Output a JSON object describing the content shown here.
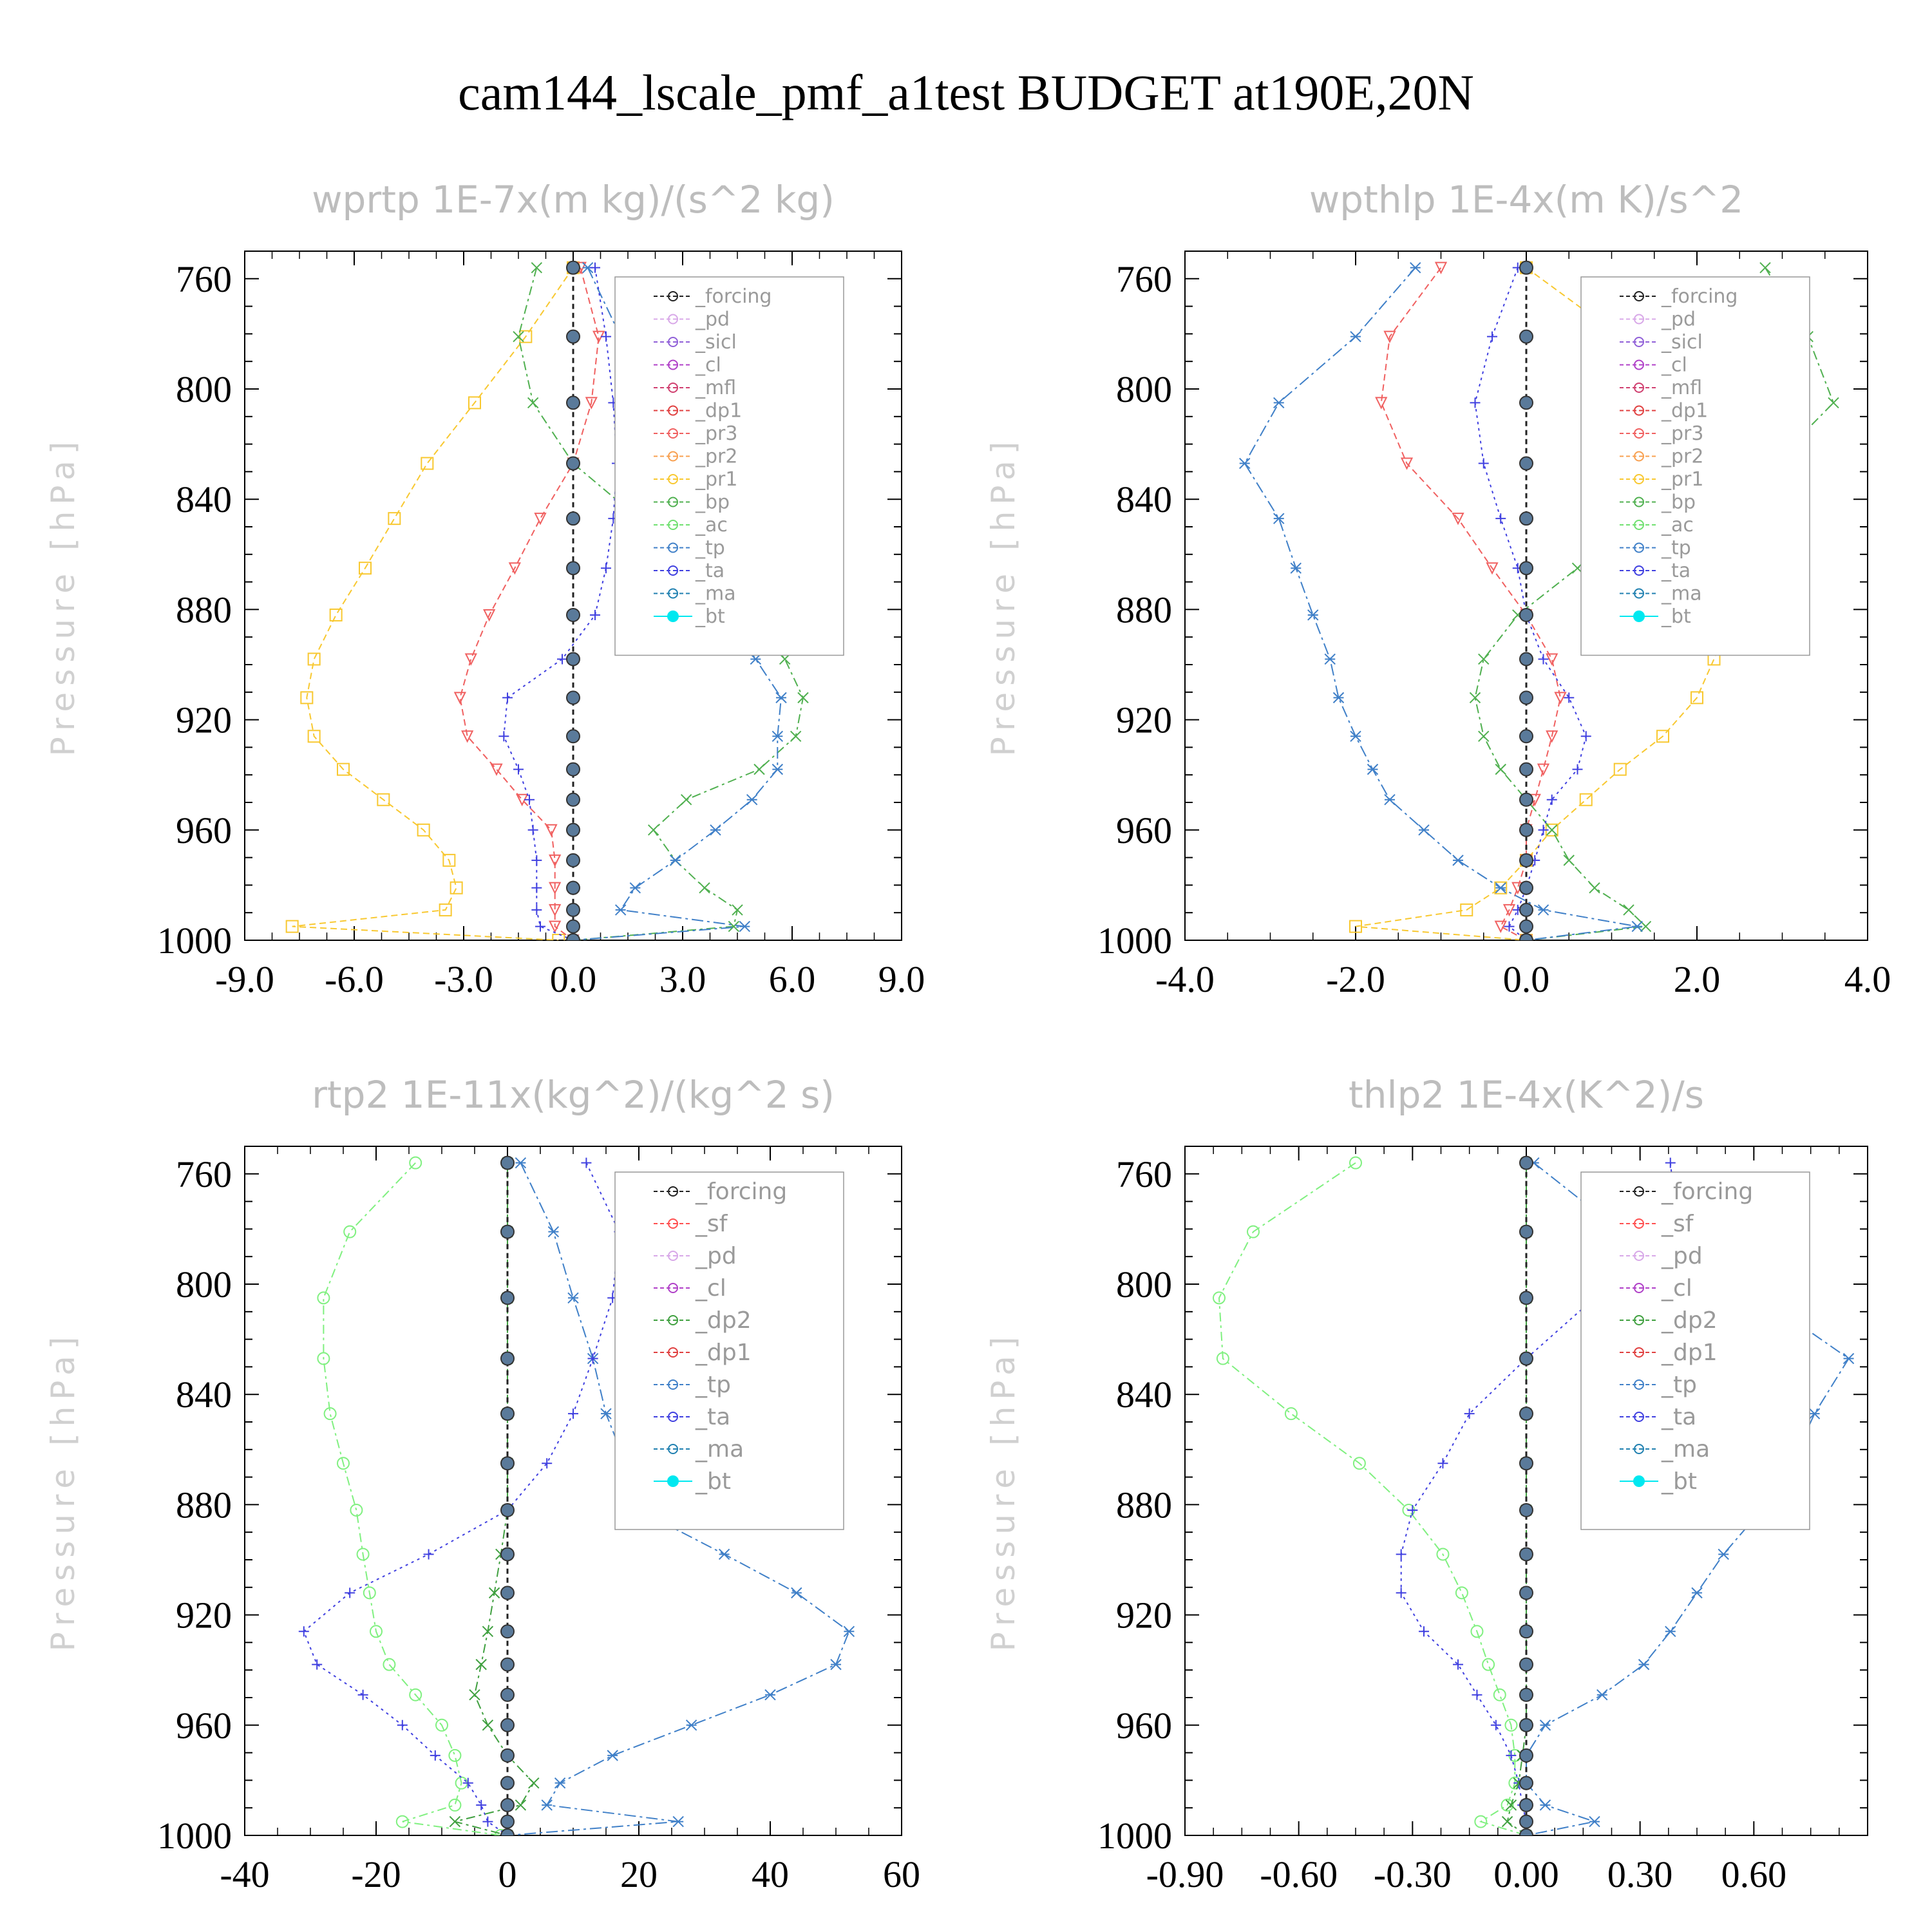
{
  "title": "cam144_lscale_pmf_a1test  BUDGET at190E,20N",
  "colors": {
    "_forcing": "#222222",
    "_pd": "#d8a8e8",
    "_sicl": "#9060d8",
    "_cl": "#b040c8",
    "_mfl": "#d04070",
    "_dp1": "#e04040",
    "_pr3": "#f06060",
    "_pr2": "#f8a050",
    "_pr1": "#f8c830",
    "_bp": "#50b050",
    "_ac": "#70e070",
    "_tp": "#4080c8",
    "_ta": "#4040e0",
    "_ma": "#2080b0",
    "_bt": "#00e8f0",
    "_sf": "#ff5050",
    "_dp2": "#40a040",
    "_dp1g": "#80f080"
  },
  "chart_data": [
    {
      "type": "line",
      "title": "wprtp   1E-7x(m kg)/(s^2 kg)",
      "ylabel": "Pressure [hPa]",
      "xlim": [
        -9.0,
        9.0
      ],
      "ylim": [
        1000,
        750
      ],
      "xticks": [
        "-9.0",
        "-6.0",
        "-3.0",
        "0.0",
        "3.0",
        "6.0",
        "9.0"
      ],
      "yticks": [
        "760",
        "800",
        "840",
        "880",
        "920",
        "960",
        "1000"
      ],
      "legend_position": "upper-right",
      "levels": [
        756,
        781,
        805,
        827,
        847,
        865,
        882,
        898,
        912,
        926,
        938,
        949,
        960,
        971,
        981,
        989,
        995,
        1000
      ],
      "legend": [
        "_forcing",
        "_pd",
        "_sicl",
        "_cl",
        "_mfl",
        "_dp1",
        "_pr3",
        "_pr2",
        "_pr1",
        "_bp",
        "_ac",
        "_tp",
        "_ta",
        "_ma",
        "_bt"
      ],
      "series": [
        {
          "name": "_pr1",
          "values": [
            0.0,
            -1.3,
            -2.7,
            -4.0,
            -4.9,
            -5.7,
            -6.5,
            -7.1,
            -7.3,
            -7.1,
            -6.3,
            -5.2,
            -4.1,
            -3.4,
            -3.2,
            -3.5,
            -7.7,
            -0.4
          ]
        },
        {
          "name": "_pr3",
          "values": [
            0.2,
            0.7,
            0.5,
            0.0,
            -0.9,
            -1.6,
            -2.3,
            -2.8,
            -3.1,
            -2.9,
            -2.1,
            -1.4,
            -0.6,
            -0.5,
            -0.5,
            -0.5,
            -0.5,
            0.0
          ]
        },
        {
          "name": "_bp",
          "values": [
            -1.0,
            -1.5,
            -1.1,
            0.0,
            1.8,
            3.3,
            4.8,
            5.8,
            6.3,
            6.1,
            5.1,
            3.1,
            2.2,
            2.8,
            3.6,
            4.5,
            4.4,
            0.0
          ]
        },
        {
          "name": "_tp",
          "values": [
            0.4,
            1.3,
            2.2,
            2.6,
            2.9,
            3.4,
            4.2,
            5.0,
            5.7,
            5.6,
            5.6,
            4.9,
            3.9,
            2.8,
            1.7,
            1.3,
            4.7,
            0.0
          ]
        },
        {
          "name": "_ta",
          "values": [
            0.6,
            0.9,
            1.1,
            1.2,
            1.1,
            0.9,
            0.6,
            -0.3,
            -1.8,
            -1.9,
            -1.5,
            -1.2,
            -1.1,
            -1.0,
            -1.0,
            -1.0,
            -0.9,
            0.0
          ]
        },
        {
          "name": "_forcing",
          "values": [
            0,
            0,
            0,
            0,
            0,
            0,
            0,
            0,
            0,
            0,
            0,
            0,
            0,
            0,
            0,
            0,
            0,
            0
          ]
        }
      ]
    },
    {
      "type": "line",
      "title": "wpthlp   1E-4x(m K)/s^2",
      "ylabel": "Pressure [hPa]",
      "xlim": [
        -4.0,
        4.0
      ],
      "ylim": [
        1000,
        750
      ],
      "xticks": [
        "-4.0",
        "-2.0",
        "0.0",
        "2.0",
        "4.0"
      ],
      "yticks": [
        "760",
        "800",
        "840",
        "880",
        "920",
        "960",
        "1000"
      ],
      "legend_position": "upper-right",
      "levels": [
        756,
        781,
        805,
        827,
        847,
        865,
        882,
        898,
        912,
        926,
        938,
        949,
        960,
        971,
        981,
        989,
        995,
        1000
      ],
      "legend": [
        "_forcing",
        "_pd",
        "_sicl",
        "_cl",
        "_mfl",
        "_dp1",
        "_pr3",
        "_pr2",
        "_pr1",
        "_bp",
        "_ac",
        "_tp",
        "_ta",
        "_ma",
        "_bt"
      ],
      "series": [
        {
          "name": "_pr1",
          "values": [
            0.0,
            1.1,
            1.8,
            2.1,
            2.3,
            2.4,
            2.4,
            2.2,
            2.0,
            1.6,
            1.1,
            0.7,
            0.3,
            0.0,
            -0.3,
            -0.7,
            -2.0,
            0.0
          ]
        },
        {
          "name": "_pr3",
          "values": [
            -1.0,
            -1.6,
            -1.7,
            -1.4,
            -0.8,
            -0.4,
            0.0,
            0.3,
            0.4,
            0.3,
            0.2,
            0.1,
            0.0,
            0.0,
            -0.1,
            -0.2,
            -0.3,
            0.0
          ]
        },
        {
          "name": "_bp",
          "values": [
            2.8,
            3.3,
            3.6,
            2.9,
            1.7,
            0.6,
            -0.1,
            -0.5,
            -0.6,
            -0.5,
            -0.3,
            0.0,
            0.3,
            0.5,
            0.8,
            1.2,
            1.4,
            0.0
          ]
        },
        {
          "name": "_tp",
          "values": [
            -1.3,
            -2.0,
            -2.9,
            -3.3,
            -2.9,
            -2.7,
            -2.5,
            -2.3,
            -2.2,
            -2.0,
            -1.8,
            -1.6,
            -1.2,
            -0.8,
            -0.3,
            0.2,
            1.3,
            0.0
          ]
        },
        {
          "name": "_ta",
          "values": [
            -0.1,
            -0.4,
            -0.6,
            -0.5,
            -0.3,
            -0.1,
            0.0,
            0.2,
            0.5,
            0.7,
            0.6,
            0.3,
            0.2,
            0.1,
            0.0,
            -0.1,
            -0.2,
            0.0
          ]
        },
        {
          "name": "_forcing",
          "values": [
            0,
            0,
            0,
            0,
            0,
            0,
            0,
            0,
            0,
            0,
            0,
            0,
            0,
            0,
            0,
            0,
            0,
            0
          ]
        }
      ]
    },
    {
      "type": "line",
      "title": "rtp2   1E-11x(kg^2)/(kg^2 s)",
      "ylabel": "Pressure [hPa]",
      "xlim": [
        -40,
        60
      ],
      "ylim": [
        1000,
        750
      ],
      "xticks": [
        "-40",
        "-20",
        "0",
        "20",
        "40",
        "60"
      ],
      "yticks": [
        "760",
        "800",
        "840",
        "880",
        "920",
        "960",
        "1000"
      ],
      "legend_position": "upper-right",
      "levels": [
        756,
        781,
        805,
        827,
        847,
        865,
        882,
        898,
        912,
        926,
        938,
        949,
        960,
        971,
        981,
        989,
        995,
        1000
      ],
      "legend": [
        "_forcing",
        "_sf",
        "_pd",
        "_cl",
        "_dp2",
        "_dp1",
        "_tp",
        "_ta",
        "_ma",
        "_bt"
      ],
      "series": [
        {
          "name": "_dp1",
          "values": [
            -14,
            -24,
            -28,
            -28,
            -27,
            -25,
            -23,
            -22,
            -21,
            -20,
            -18,
            -14,
            -10,
            -8,
            -7,
            -8,
            -16,
            -1
          ]
        },
        {
          "name": "_tp",
          "values": [
            2,
            7,
            10,
            13,
            15,
            18,
            20,
            33,
            44,
            52,
            50,
            40,
            28,
            16,
            8,
            6,
            26,
            0
          ]
        },
        {
          "name": "_ta",
          "values": [
            12,
            17,
            16,
            13,
            10,
            6,
            0,
            -12,
            -24,
            -31,
            -29,
            -22,
            -16,
            -11,
            -6,
            -4,
            -3,
            0
          ]
        },
        {
          "name": "_dp2",
          "values": [
            0,
            0,
            0,
            0,
            0,
            0,
            0,
            -1,
            -2,
            -3,
            -4,
            -5,
            -3,
            0,
            4,
            2,
            -8,
            0
          ]
        },
        {
          "name": "_forcing",
          "values": [
            0,
            0,
            0,
            0,
            0,
            0,
            0,
            0,
            0,
            0,
            0,
            0,
            0,
            0,
            0,
            0,
            0,
            0
          ]
        }
      ]
    },
    {
      "type": "line",
      "title": "thlp2   1E-4x(K^2)/s",
      "ylabel": "Pressure [hPa]",
      "xlim": [
        -0.9,
        0.9
      ],
      "ylim": [
        1000,
        750
      ],
      "xticks": [
        "-0.90",
        "-0.60",
        "-0.30",
        "0.00",
        "0.30",
        "0.60"
      ],
      "yticks": [
        "760",
        "800",
        "840",
        "880",
        "920",
        "960",
        "1000"
      ],
      "legend_position": "upper-right",
      "levels": [
        756,
        781,
        805,
        827,
        847,
        865,
        882,
        898,
        912,
        926,
        938,
        949,
        960,
        971,
        981,
        989,
        995,
        1000
      ],
      "legend": [
        "_forcing",
        "_sf",
        "_pd",
        "_cl",
        "_dp2",
        "_dp1",
        "_tp",
        "_ta",
        "_ma",
        "_bt"
      ],
      "series": [
        {
          "name": "_dp1",
          "values": [
            -0.45,
            -0.72,
            -0.81,
            -0.8,
            -0.62,
            -0.44,
            -0.31,
            -0.22,
            -0.17,
            -0.13,
            -0.1,
            -0.07,
            -0.04,
            -0.03,
            -0.03,
            -0.05,
            -0.12,
            0.0
          ]
        },
        {
          "name": "_tp",
          "values": [
            0.02,
            0.25,
            0.62,
            0.85,
            0.76,
            0.7,
            0.62,
            0.52,
            0.45,
            0.38,
            0.31,
            0.2,
            0.05,
            0.0,
            0.0,
            0.05,
            0.18,
            0.0
          ]
        },
        {
          "name": "_ta",
          "values": [
            0.38,
            0.4,
            0.18,
            0.0,
            -0.15,
            -0.22,
            -0.3,
            -0.33,
            -0.33,
            -0.27,
            -0.18,
            -0.13,
            -0.08,
            -0.04,
            -0.02,
            -0.01,
            0.0,
            0.0
          ]
        },
        {
          "name": "_dp2",
          "values": [
            0,
            0,
            0,
            0,
            0,
            0,
            0,
            0,
            0,
            0,
            0,
            0,
            0,
            -0.01,
            -0.02,
            -0.04,
            -0.05,
            0
          ]
        },
        {
          "name": "_forcing",
          "values": [
            0,
            0,
            0,
            0,
            0,
            0,
            0,
            0,
            0,
            0,
            0,
            0,
            0,
            0,
            0,
            0,
            0,
            0
          ]
        }
      ]
    }
  ]
}
